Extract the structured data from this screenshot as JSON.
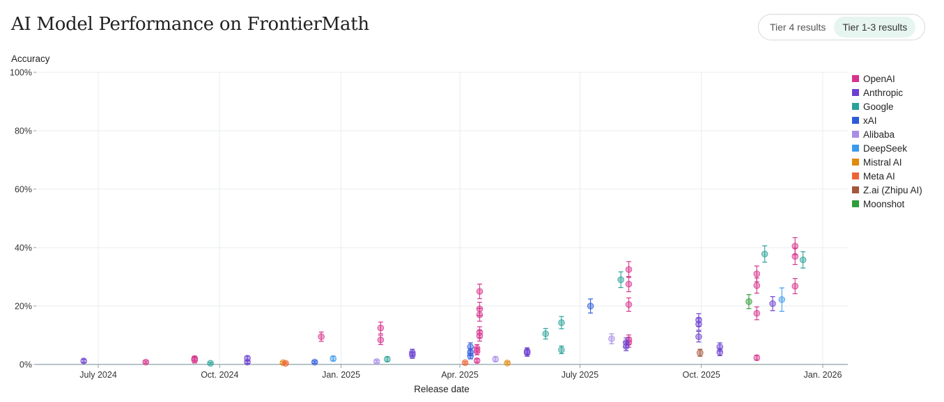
{
  "page": {
    "title": "AI Model Performance on FrontierMath"
  },
  "toggle": {
    "options": [
      "Tier 4 results",
      "Tier 1-3 results"
    ],
    "active": "Tier 1-3 results"
  },
  "legend": [
    {
      "label": "OpenAI",
      "color": "#d6338c"
    },
    {
      "label": "Anthropic",
      "color": "#6b3fcf"
    },
    {
      "label": "Google",
      "color": "#2aa198"
    },
    {
      "label": "xAI",
      "color": "#2d5bdc"
    },
    {
      "label": "Alibaba",
      "color": "#a98de8"
    },
    {
      "label": "DeepSeek",
      "color": "#3b9bea"
    },
    {
      "label": "Mistral AI",
      "color": "#e08a0e"
    },
    {
      "label": "Meta AI",
      "color": "#ee6436"
    },
    {
      "label": "Z.ai (Zhipu AI)",
      "color": "#a4553a"
    },
    {
      "label": "Moonshot",
      "color": "#2f9e3a"
    }
  ],
  "chart_data": {
    "type": "scatter",
    "title": "AI Model Performance on FrontierMath",
    "xlabel": "Release date",
    "ylabel": "Accuracy",
    "xlim": [
      "2024-05-15",
      "2026-01-20"
    ],
    "ylim": [
      0,
      100
    ],
    "xticks": [
      {
        "date": "2024-07-01",
        "label": "July 2024"
      },
      {
        "date": "2024-10-01",
        "label": "Oct. 2024"
      },
      {
        "date": "2025-01-01",
        "label": "Jan. 2025"
      },
      {
        "date": "2025-04-01",
        "label": "Apr. 2025"
      },
      {
        "date": "2025-07-01",
        "label": "July 2025"
      },
      {
        "date": "2025-10-01",
        "label": "Oct. 2025"
      },
      {
        "date": "2026-01-01",
        "label": "Jan. 2026"
      }
    ],
    "yticks": [
      {
        "value": 0,
        "label": "0%"
      },
      {
        "value": 20,
        "label": "20%"
      },
      {
        "value": 40,
        "label": "40%"
      },
      {
        "value": 60,
        "label": "60%"
      },
      {
        "value": 80,
        "label": "80%"
      },
      {
        "value": 100,
        "label": "100%"
      }
    ],
    "grid": true,
    "legend_position": "right",
    "series": [
      {
        "name": "OpenAI",
        "color": "#d6338c",
        "points": [
          {
            "x": "2024-08-06",
            "y": 0.8,
            "err": 0.4
          },
          {
            "x": "2024-09-12",
            "y": 1.5,
            "err": 1.0
          },
          {
            "x": "2024-09-12",
            "y": 2.0,
            "err": 0.8
          },
          {
            "x": "2024-12-17",
            "y": 9.5,
            "err": 1.6
          },
          {
            "x": "2025-01-31",
            "y": 12.5,
            "err": 2.0
          },
          {
            "x": "2025-01-31",
            "y": 8.4,
            "err": 1.6
          },
          {
            "x": "2025-04-14",
            "y": 1.3,
            "err": 0.6
          },
          {
            "x": "2025-04-16",
            "y": 25.0,
            "err": 2.5
          },
          {
            "x": "2025-04-16",
            "y": 19.0,
            "err": 2.3
          },
          {
            "x": "2025-04-16",
            "y": 17.0,
            "err": 2.2
          },
          {
            "x": "2025-04-16",
            "y": 11.0,
            "err": 1.9
          },
          {
            "x": "2025-04-16",
            "y": 9.8,
            "err": 1.8
          },
          {
            "x": "2025-04-14",
            "y": 5.5,
            "err": 1.3
          },
          {
            "x": "2025-04-14",
            "y": 4.5,
            "err": 1.2
          },
          {
            "x": "2025-08-07",
            "y": 32.5,
            "err": 2.7
          },
          {
            "x": "2025-08-07",
            "y": 27.5,
            "err": 2.6
          },
          {
            "x": "2025-08-07",
            "y": 20.5,
            "err": 2.3
          },
          {
            "x": "2025-08-07",
            "y": 8.5,
            "err": 1.6
          },
          {
            "x": "2025-08-07",
            "y": 7.5,
            "err": 1.6
          },
          {
            "x": "2025-11-12",
            "y": 31.0,
            "err": 2.7
          },
          {
            "x": "2025-11-12",
            "y": 27.0,
            "err": 2.6
          },
          {
            "x": "2025-11-12",
            "y": 17.5,
            "err": 2.2
          },
          {
            "x": "2025-11-12",
            "y": 2.3,
            "err": 0.8
          },
          {
            "x": "2025-12-11",
            "y": 40.5,
            "err": 2.9
          },
          {
            "x": "2025-12-11",
            "y": 37.0,
            "err": 2.8
          },
          {
            "x": "2025-12-11",
            "y": 26.8,
            "err": 2.6
          }
        ]
      },
      {
        "name": "Anthropic",
        "color": "#6b3fcf",
        "points": [
          {
            "x": "2024-06-20",
            "y": 1.2,
            "err": 0.6
          },
          {
            "x": "2024-10-22",
            "y": 2.1,
            "err": 0.8
          },
          {
            "x": "2024-10-22",
            "y": 0.8,
            "err": 0.5
          },
          {
            "x": "2025-02-24",
            "y": 4.0,
            "err": 1.2
          },
          {
            "x": "2025-02-24",
            "y": 3.2,
            "err": 1.1
          },
          {
            "x": "2025-05-22",
            "y": 4.5,
            "err": 1.2
          },
          {
            "x": "2025-05-22",
            "y": 4.0,
            "err": 1.2
          },
          {
            "x": "2025-08-05",
            "y": 7.5,
            "err": 1.6
          },
          {
            "x": "2025-08-05",
            "y": 6.2,
            "err": 1.5
          },
          {
            "x": "2025-09-29",
            "y": 15.2,
            "err": 2.2
          },
          {
            "x": "2025-09-29",
            "y": 13.8,
            "err": 2.1
          },
          {
            "x": "2025-09-29",
            "y": 9.5,
            "err": 1.8
          },
          {
            "x": "2025-10-15",
            "y": 6.0,
            "err": 1.4
          },
          {
            "x": "2025-10-15",
            "y": 4.2,
            "err": 1.2
          },
          {
            "x": "2025-11-24",
            "y": 20.8,
            "err": 2.4
          }
        ]
      },
      {
        "name": "Google",
        "color": "#2aa198",
        "points": [
          {
            "x": "2024-09-24",
            "y": 0.4,
            "err": 0.3
          },
          {
            "x": "2025-02-05",
            "y": 1.8,
            "err": 0.8
          },
          {
            "x": "2025-06-05",
            "y": 10.5,
            "err": 1.8
          },
          {
            "x": "2025-06-17",
            "y": 14.3,
            "err": 2.1
          },
          {
            "x": "2025-06-17",
            "y": 5.0,
            "err": 1.3
          },
          {
            "x": "2025-08-01",
            "y": 29.0,
            "err": 2.7
          },
          {
            "x": "2025-11-18",
            "y": 37.8,
            "err": 2.8
          },
          {
            "x": "2025-12-17",
            "y": 35.8,
            "err": 2.8
          }
        ]
      },
      {
        "name": "xAI",
        "color": "#2d5bdc",
        "points": [
          {
            "x": "2024-12-12",
            "y": 0.8,
            "err": 0.4
          },
          {
            "x": "2025-04-09",
            "y": 6.0,
            "err": 1.4
          },
          {
            "x": "2025-04-09",
            "y": 4.2,
            "err": 1.2
          },
          {
            "x": "2025-04-09",
            "y": 2.9,
            "err": 1.0
          },
          {
            "x": "2025-07-09",
            "y": 20.0,
            "err": 2.4
          }
        ]
      },
      {
        "name": "Alibaba",
        "color": "#a98de8",
        "points": [
          {
            "x": "2025-01-28",
            "y": 1.0,
            "err": 0.5
          },
          {
            "x": "2025-04-28",
            "y": 1.8,
            "err": 0.8
          },
          {
            "x": "2025-07-25",
            "y": 8.8,
            "err": 1.7
          }
        ]
      },
      {
        "name": "DeepSeek",
        "color": "#3b9bea",
        "points": [
          {
            "x": "2024-12-26",
            "y": 2.0,
            "err": 0.8
          },
          {
            "x": "2025-12-01",
            "y": 22.2,
            "err": 4.0
          }
        ]
      },
      {
        "name": "Mistral AI",
        "color": "#e08a0e",
        "points": [
          {
            "x": "2024-11-18",
            "y": 0.6,
            "err": 0.4
          },
          {
            "x": "2025-05-07",
            "y": 0.5,
            "err": 0.4
          }
        ]
      },
      {
        "name": "Meta AI",
        "color": "#ee6436",
        "points": [
          {
            "x": "2024-11-20",
            "y": 0.4,
            "err": 0.3
          },
          {
            "x": "2025-04-05",
            "y": 0.6,
            "err": 0.4
          }
        ]
      },
      {
        "name": "Z.ai (Zhipu AI)",
        "color": "#a4553a",
        "points": [
          {
            "x": "2025-09-30",
            "y": 4.0,
            "err": 1.2
          }
        ]
      },
      {
        "name": "Moonshot",
        "color": "#2f9e3a",
        "points": [
          {
            "x": "2025-11-06",
            "y": 21.5,
            "err": 2.4
          }
        ]
      }
    ]
  }
}
